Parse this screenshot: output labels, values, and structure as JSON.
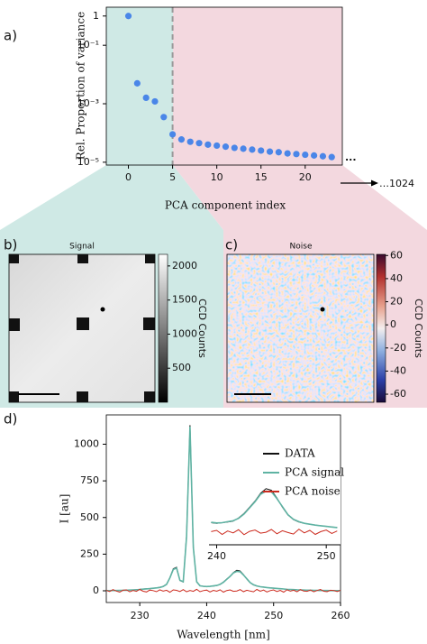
{
  "chart_data": [
    {
      "type": "scatter",
      "label": "a)",
      "y_label": "Rel. Proportion of variance",
      "x_label": "PCA component index",
      "annotations": [
        "...",
        "…1024"
      ],
      "log_y": true,
      "color": "#4a86e8",
      "divider": 5,
      "x": [
        0,
        1,
        2,
        3,
        4,
        5,
        6,
        7,
        8,
        9,
        10,
        11,
        12,
        13,
        14,
        15,
        16,
        17,
        18,
        19,
        20,
        21,
        22,
        23
      ],
      "values": [
        1,
        0.005,
        0.0016,
        0.0012,
        0.00035,
        9e-05,
        6e-05,
        5e-05,
        4.5e-05,
        4e-05,
        3.7e-05,
        3.4e-05,
        3.1e-05,
        2.9e-05,
        2.7e-05,
        2.5e-05,
        2.3e-05,
        2.2e-05,
        2e-05,
        1.9e-05,
        1.8e-05,
        1.7e-05,
        1.6e-05,
        1.5e-05
      ],
      "xlim": [
        -2.5,
        24.2
      ],
      "xticks": [
        0,
        5,
        10,
        15,
        20
      ],
      "ylim": [
        8e-06,
        2
      ],
      "yticks": [
        1,
        {
          "value": 0.1,
          "label": "10⁻¹"
        },
        {
          "value": 0.001,
          "label": "10⁻³"
        },
        {
          "value": 1e-05,
          "label": "10⁻⁵"
        }
      ]
    },
    {
      "type": "image",
      "label": "b)",
      "title": "Signal",
      "colorbar_label": "CCD Counts",
      "clim": [
        0,
        2170
      ],
      "cticks": [
        500,
        1000,
        1500,
        2000
      ]
    },
    {
      "type": "image",
      "label": "c)",
      "title": "Noise",
      "colorbar_label": "CCD Counts",
      "clim": [
        -67,
        61
      ],
      "cticks": [
        -60,
        -40,
        -20,
        0,
        20,
        40,
        60
      ]
    },
    {
      "type": "line",
      "label": "d)",
      "y_label": "I [au]",
      "x_label": "Wavelength [nm]",
      "legend": "upper right",
      "x": [
        225,
        225.5,
        226,
        226.5,
        227,
        227.5,
        228,
        228.5,
        229,
        229.5,
        230,
        230.5,
        231,
        231.5,
        232,
        232.5,
        233,
        233.5,
        234,
        234.5,
        235,
        235.5,
        236,
        236.5,
        237,
        237.5,
        238,
        238.5,
        239,
        239.5,
        240,
        240.5,
        241,
        241.5,
        242,
        242.5,
        243,
        243.5,
        244,
        244.5,
        245,
        245.5,
        246,
        246.5,
        247,
        247.5,
        248,
        248.5,
        249,
        249.5,
        250,
        250.5,
        251,
        251.5,
        252,
        252.5,
        253,
        253.5,
        254,
        254.5,
        255,
        255.5,
        256,
        256.5,
        257,
        257.5,
        258,
        258.5,
        259,
        259.5,
        260
      ],
      "series": [
        {
          "name": "DATA",
          "color": "#111111",
          "values": [
            1,
            2,
            1,
            3,
            2,
            4,
            3,
            5,
            6,
            8,
            10,
            12,
            14,
            15,
            18,
            20,
            24,
            30,
            45,
            90,
            150,
            160,
            70,
            60,
            380,
            1130,
            300,
            60,
            35,
            30,
            28,
            30,
            32,
            35,
            45,
            60,
            80,
            100,
            125,
            140,
            135,
            110,
            80,
            55,
            40,
            32,
            28,
            25,
            22,
            20,
            18,
            16,
            14,
            12,
            10,
            9,
            8,
            7,
            6,
            5,
            4,
            4,
            3,
            3,
            2,
            2,
            2,
            1,
            1,
            1,
            1
          ]
        },
        {
          "name": "PCA signal",
          "color": "#5fb3a3",
          "values": [
            1,
            1,
            2,
            2,
            3,
            3,
            4,
            5,
            6,
            7,
            9,
            11,
            13,
            15,
            17,
            20,
            23,
            29,
            44,
            88,
            145,
            155,
            72,
            62,
            370,
            1120,
            295,
            62,
            34,
            31,
            29,
            30,
            33,
            36,
            44,
            58,
            78,
            98,
            122,
            132,
            130,
            108,
            82,
            56,
            41,
            33,
            28,
            25,
            22,
            20,
            18,
            16,
            14,
            12,
            10,
            9,
            8,
            7,
            6,
            5,
            4,
            4,
            3,
            3,
            2,
            2,
            2,
            1,
            1,
            1,
            1
          ]
        },
        {
          "name": "PCA noise",
          "color": "#cc2a1e",
          "values": [
            3,
            -5,
            8,
            -2,
            -9,
            4,
            6,
            -7,
            2,
            -4,
            9,
            -3,
            -8,
            5,
            1,
            -6,
            7,
            -2,
            4,
            -10,
            6,
            3,
            -5,
            8,
            -7,
            2,
            -4,
            10,
            -6,
            1,
            5,
            -8,
            3,
            -3,
            7,
            -9,
            2,
            6,
            -4,
            -1,
            8,
            -6,
            4,
            -2,
            -7,
            9,
            -3,
            5,
            -8,
            1,
            6,
            -5,
            3,
            -9,
            7,
            -2,
            4,
            -6,
            8,
            -1,
            -4,
            5,
            -7,
            2,
            9,
            -3,
            -6,
            4,
            1,
            -5,
            3
          ]
        }
      ],
      "xlim": [
        225,
        260
      ],
      "xticks": [
        230,
        240,
        250,
        260
      ],
      "ylim": [
        -80,
        1200
      ],
      "yticks": [
        0,
        250,
        500,
        750,
        1000
      ],
      "inset": {
        "xlim": [
          239.3,
          251.3
        ],
        "xticks": [
          240,
          250
        ],
        "ylim": [
          -30,
          160
        ]
      }
    }
  ]
}
